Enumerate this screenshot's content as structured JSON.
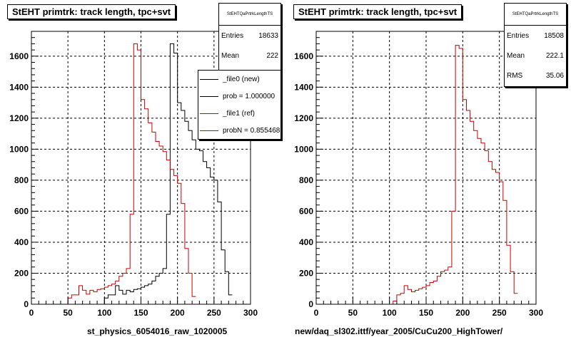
{
  "chart_data": [
    {
      "type": "histogram",
      "title": "StEHT primtrk: track length, tpc+svt",
      "xlabel": "st_physics_6054016_raw_1020005",
      "xlim": [
        0,
        300
      ],
      "ylim": [
        0,
        1760
      ],
      "xticks": [
        0,
        50,
        100,
        150,
        200,
        250,
        300
      ],
      "yticks": [
        0,
        200,
        400,
        600,
        800,
        1000,
        1200,
        1400,
        1600
      ],
      "grid": true,
      "bin_width": 5,
      "stats": {
        "name": "StEHTQaPrtrkLengthTS",
        "entries_label": "Entries",
        "entries": "18633",
        "mean_label": "Mean",
        "mean": "222"
      },
      "legend": {
        "placement": "top-right",
        "entries": [
          {
            "label": "_file0 (new)",
            "color": "#000000"
          },
          {
            "label": "prob = 1.000000",
            "color": "#000000"
          },
          {
            "label": "_file1 (ref)",
            "color": "#cc0000"
          },
          {
            "label": "probN = 0.855468",
            "color": "#cc0000"
          }
        ]
      },
      "series": [
        {
          "name": "_file0 (new)",
          "color": "#000000",
          "values": [
            0,
            0,
            0,
            0,
            0,
            0,
            0,
            0,
            0,
            0,
            0,
            0,
            0,
            0,
            0,
            0,
            0,
            0,
            0,
            0,
            40,
            60,
            60,
            120,
            90,
            65,
            90,
            80,
            95,
            100,
            110,
            120,
            130,
            150,
            180,
            200,
            230,
            580,
            1680,
            1620,
            1300,
            1250,
            1180,
            1120,
            1060,
            1000,
            990,
            920,
            880,
            820,
            800,
            660,
            350,
            210,
            60
          ]
        },
        {
          "name": "_file1 (ref)",
          "color": "#cc0000",
          "values": [
            0,
            0,
            0,
            0,
            0,
            0,
            0,
            0,
            0,
            0,
            40,
            60,
            60,
            120,
            90,
            65,
            90,
            80,
            95,
            100,
            110,
            120,
            130,
            150,
            180,
            200,
            230,
            580,
            1680,
            1640,
            1320,
            1260,
            1170,
            1110,
            1050,
            1020,
            985,
            930,
            870,
            830,
            780,
            650,
            360,
            200,
            50
          ]
        }
      ]
    },
    {
      "type": "histogram",
      "title": "StEHT primtrk: track length, tpc+svt",
      "xlabel": "new/daq_sl302.ittf/year_2005/CuCu200_HighTower/",
      "xlim": [
        0,
        300
      ],
      "ylim": [
        0,
        1760
      ],
      "xticks": [
        0,
        50,
        100,
        150,
        200,
        250,
        300
      ],
      "yticks": [
        0,
        200,
        400,
        600,
        800,
        1000,
        1200,
        1400,
        1600
      ],
      "grid": true,
      "bin_width": 5,
      "stats": {
        "name": "StEHTQaPrtrkLengthTS",
        "entries_label": "Entries",
        "entries": "18508",
        "mean_label": "Mean",
        "mean": "222.1",
        "rms_label": "RMS",
        "rms": "35.06"
      },
      "series": [
        {
          "name": "",
          "color": "#cc0000",
          "values": [
            0,
            0,
            0,
            0,
            0,
            0,
            0,
            0,
            0,
            0,
            0,
            0,
            0,
            0,
            0,
            0,
            0,
            0,
            0,
            0,
            0,
            20,
            60,
            70,
            120,
            95,
            80,
            90,
            100,
            110,
            120,
            140,
            150,
            180,
            210,
            220,
            240,
            600,
            1670,
            1650,
            1320,
            1250,
            1180,
            1120,
            1070,
            1040,
            990,
            920,
            870,
            850,
            790,
            670,
            380,
            210,
            70
          ]
        }
      ]
    }
  ]
}
